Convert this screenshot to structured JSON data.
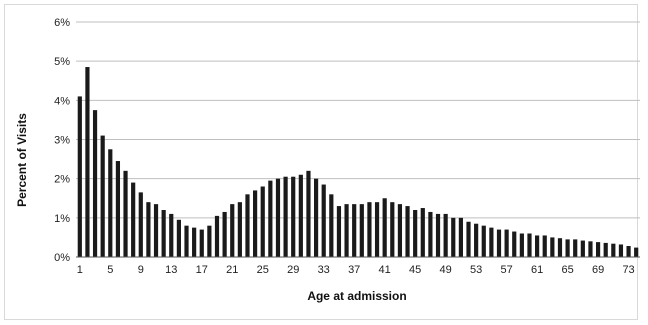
{
  "chart_data": {
    "type": "bar",
    "title": "",
    "xlabel": "Age at admission",
    "ylabel": "Percent of Visits",
    "ylim": [
      0,
      6
    ],
    "y_ticks": [
      "0%",
      "1%",
      "2%",
      "3%",
      "4%",
      "5%",
      "6%"
    ],
    "x_tick_labels": [
      "1",
      "5",
      "9",
      "13",
      "17",
      "21",
      "25",
      "29",
      "33",
      "37",
      "41",
      "45",
      "49",
      "53",
      "57",
      "61",
      "65",
      "69",
      "73"
    ],
    "grid": true,
    "bar_color": "#1a1a1a",
    "categories": [
      1,
      2,
      3,
      4,
      5,
      6,
      7,
      8,
      9,
      10,
      11,
      12,
      13,
      14,
      15,
      16,
      17,
      18,
      19,
      20,
      21,
      22,
      23,
      24,
      25,
      26,
      27,
      28,
      29,
      30,
      31,
      32,
      33,
      34,
      35,
      36,
      37,
      38,
      39,
      40,
      41,
      42,
      43,
      44,
      45,
      46,
      47,
      48,
      49,
      50,
      51,
      52,
      53,
      54,
      55,
      56,
      57,
      58,
      59,
      60,
      61,
      62,
      63,
      64,
      65,
      66,
      67,
      68,
      69,
      70,
      71,
      72,
      73,
      74
    ],
    "values": [
      4.1,
      4.85,
      3.75,
      3.1,
      2.75,
      2.45,
      2.2,
      1.9,
      1.65,
      1.4,
      1.35,
      1.2,
      1.1,
      0.95,
      0.8,
      0.75,
      0.7,
      0.8,
      1.05,
      1.15,
      1.35,
      1.4,
      1.6,
      1.7,
      1.8,
      1.95,
      2.0,
      2.05,
      2.05,
      2.1,
      2.2,
      2.0,
      1.85,
      1.6,
      1.3,
      1.35,
      1.35,
      1.35,
      1.4,
      1.4,
      1.5,
      1.4,
      1.35,
      1.3,
      1.2,
      1.25,
      1.15,
      1.1,
      1.1,
      1.0,
      1.0,
      0.9,
      0.85,
      0.8,
      0.75,
      0.7,
      0.7,
      0.65,
      0.6,
      0.6,
      0.55,
      0.55,
      0.5,
      0.48,
      0.45,
      0.45,
      0.42,
      0.4,
      0.38,
      0.36,
      0.34,
      0.32,
      0.28,
      0.24
    ]
  }
}
